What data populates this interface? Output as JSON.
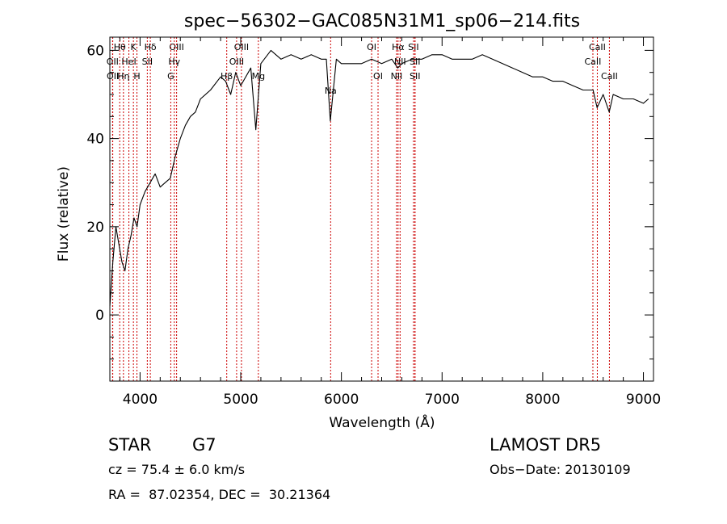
{
  "chart_data": {
    "type": "line",
    "title": "spec−56302−GAC085N31M1_sp06−214.fits",
    "xlabel": "Wavelength (Å)",
    "ylabel": "Flux (relative)",
    "xlim": [
      3700,
      9100
    ],
    "ylim": [
      -15,
      63
    ],
    "x_ticks": [
      4000,
      5000,
      6000,
      7000,
      8000,
      9000
    ],
    "y_ticks": [
      0,
      20,
      40,
      60
    ],
    "series": [
      {
        "x": [
          3700,
          3730,
          3760,
          3790,
          3820,
          3850,
          3880,
          3910,
          3940,
          3970,
          4000,
          4050,
          4100,
          4150,
          4200,
          4250,
          4300,
          4350,
          4400,
          4450,
          4500,
          4550,
          4600,
          4700,
          4800,
          4850,
          4900,
          4950,
          5000,
          5100,
          5150,
          5200,
          5300,
          5400,
          5500,
          5600,
          5700,
          5800,
          5850,
          5890,
          5950,
          6000,
          6100,
          6200,
          6300,
          6400,
          6500,
          6560,
          6600,
          6700,
          6800,
          6900,
          7000,
          7100,
          7200,
          7300,
          7400,
          7500,
          7600,
          7700,
          7800,
          7900,
          8000,
          8100,
          8200,
          8300,
          8400,
          8500,
          8540,
          8600,
          8660,
          8700,
          8800,
          8900,
          9000,
          9050
        ],
        "y": [
          2,
          12,
          20,
          16,
          12,
          10,
          15,
          18,
          22,
          20,
          25,
          28,
          30,
          32,
          29,
          30,
          31,
          36,
          40,
          43,
          45,
          46,
          49,
          51,
          54,
          53,
          50,
          55,
          52,
          56,
          42,
          57,
          60,
          58,
          59,
          58,
          59,
          58,
          58,
          44,
          58,
          57,
          57,
          57,
          58,
          57,
          58,
          56,
          57,
          58,
          58,
          59,
          59,
          58,
          58,
          58,
          59,
          58,
          57,
          56,
          55,
          54,
          54,
          53,
          53,
          52,
          51,
          51,
          47,
          50,
          46,
          50,
          49,
          49,
          48,
          49
        ]
      }
    ],
    "lines": [
      {
        "label": "Hθ",
        "x": 3798,
        "row": 0
      },
      {
        "label": "K",
        "x": 3934,
        "row": 0
      },
      {
        "label": "Hδ",
        "x": 4102,
        "row": 0
      },
      {
        "label": "OIII",
        "x": 4363,
        "row": 0
      },
      {
        "label": "OIII",
        "x": 5007,
        "row": 0
      },
      {
        "label": "OI",
        "x": 6300,
        "row": 0
      },
      {
        "label": "Hα",
        "x": 6563,
        "row": 0
      },
      {
        "label": "SII",
        "x": 6716,
        "row": 0
      },
      {
        "label": "CaII",
        "x": 8542,
        "row": 0
      },
      {
        "label": "OII",
        "x": 3727,
        "row": 1
      },
      {
        "label": "HeI",
        "x": 3889,
        "row": 1
      },
      {
        "label": "SII",
        "x": 4072,
        "row": 1
      },
      {
        "label": "Hγ",
        "x": 4340,
        "row": 1
      },
      {
        "label": "OIII",
        "x": 4959,
        "row": 1
      },
      {
        "label": "NII",
        "x": 6583,
        "row": 1
      },
      {
        "label": "SII",
        "x": 6731,
        "row": 1
      },
      {
        "label": "CaII",
        "x": 8498,
        "row": 1
      },
      {
        "label": "OII",
        "x": 3729,
        "row": 2
      },
      {
        "label": "Hη",
        "x": 3835,
        "row": 2
      },
      {
        "label": "H",
        "x": 3969,
        "row": 2
      },
      {
        "label": "G",
        "x": 4305,
        "row": 2
      },
      {
        "label": "Hβ",
        "x": 4861,
        "row": 2
      },
      {
        "label": "Mg",
        "x": 5175,
        "row": 2
      },
      {
        "label": "OI",
        "x": 6364,
        "row": 2
      },
      {
        "label": "NII",
        "x": 6548,
        "row": 2
      },
      {
        "label": "SII",
        "x": 6731,
        "row": 2
      },
      {
        "label": "CaII",
        "x": 8662,
        "row": 2
      },
      {
        "label": "Na",
        "x": 5893,
        "row": 3
      }
    ],
    "grid": false
  },
  "info": {
    "object_class": "STAR",
    "subclass": "G7",
    "survey": "LAMOST DR5",
    "redshift_line": "cz = 75.4 ± 6.0 km/s",
    "obs_date_line": "Obs−Date: 20130109",
    "coords_line": "RA =  87.02354, DEC =  30.21364"
  },
  "colors": {
    "spectrum": "#000000",
    "line_markers": "#cc0000",
    "axes": "#000000"
  }
}
